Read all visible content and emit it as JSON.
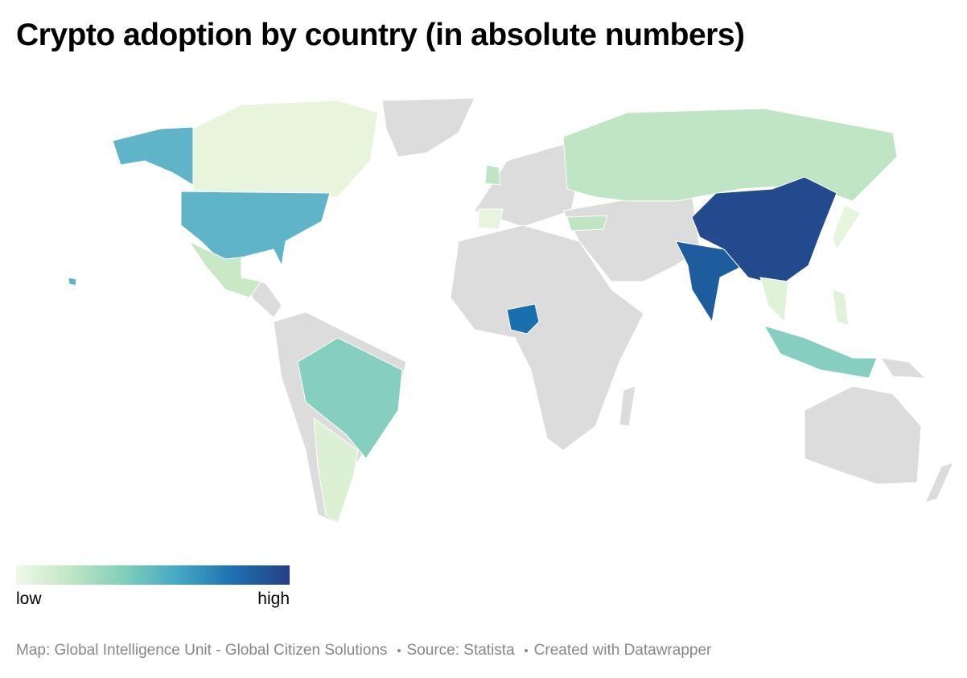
{
  "title": "Crypto adoption by country (in absolute numbers)",
  "legend": {
    "low": "low",
    "high": "high",
    "colors": [
      "#f0f9e8",
      "#bfe5c4",
      "#7fcdbb",
      "#41a6c4",
      "#1d6fb0",
      "#253f84"
    ]
  },
  "footer": {
    "map": "Map: Global Intelligence Unit - Global Citizen Solutions",
    "source": "Source: Statista",
    "credit": "Created with Datawrapper"
  }
}
